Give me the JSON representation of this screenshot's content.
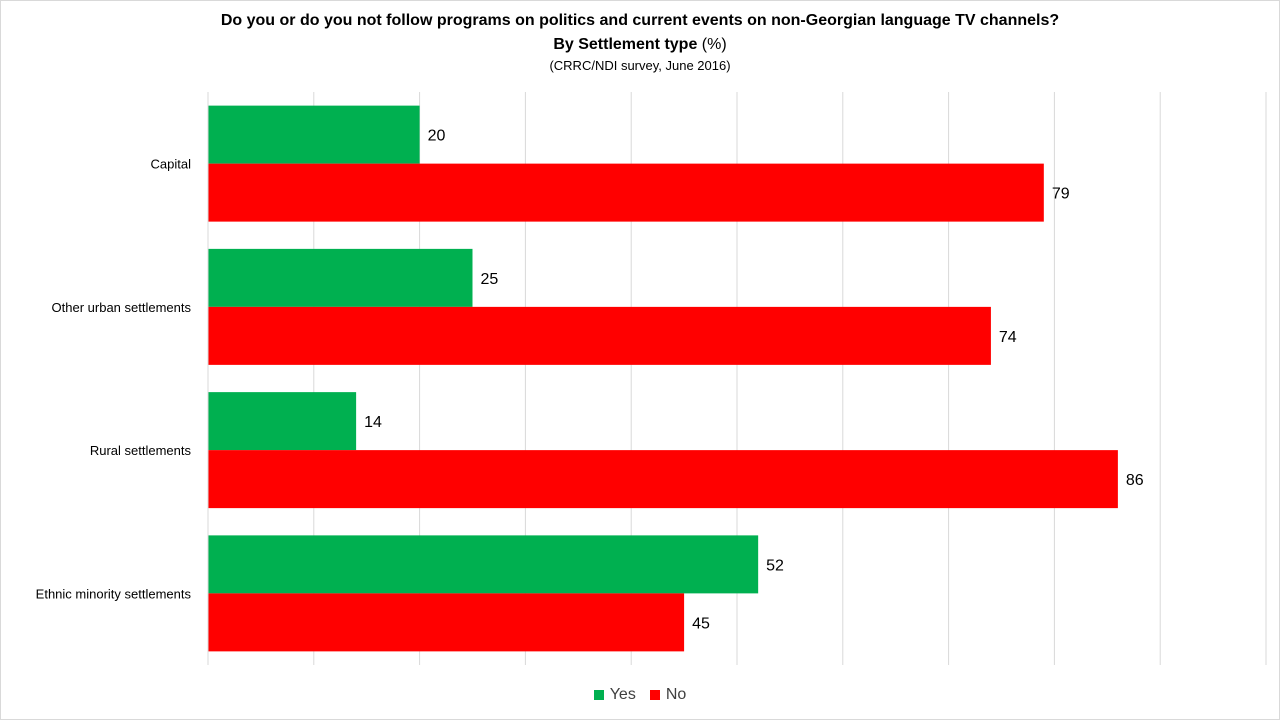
{
  "chart_data": {
    "type": "bar",
    "orientation": "horizontal",
    "title": "Do you or do you not follow programs on politics and current events on non-Georgian language TV channels?",
    "subtitle_bold": "By Settlement type",
    "subtitle_rest": " (%)",
    "source": "(CRRC/NDI survey, June 2016)",
    "categories": [
      "Capital",
      "Other urban settlements",
      "Rural settlements",
      "Ethnic minority settlements"
    ],
    "series": [
      {
        "name": "Yes",
        "color": "#00b050",
        "values": [
          20,
          25,
          14,
          52
        ]
      },
      {
        "name": "No",
        "color": "#ff0000",
        "values": [
          79,
          74,
          86,
          45
        ]
      }
    ],
    "xlim": [
      0,
      100
    ],
    "grid": true,
    "legend": "bottom"
  }
}
